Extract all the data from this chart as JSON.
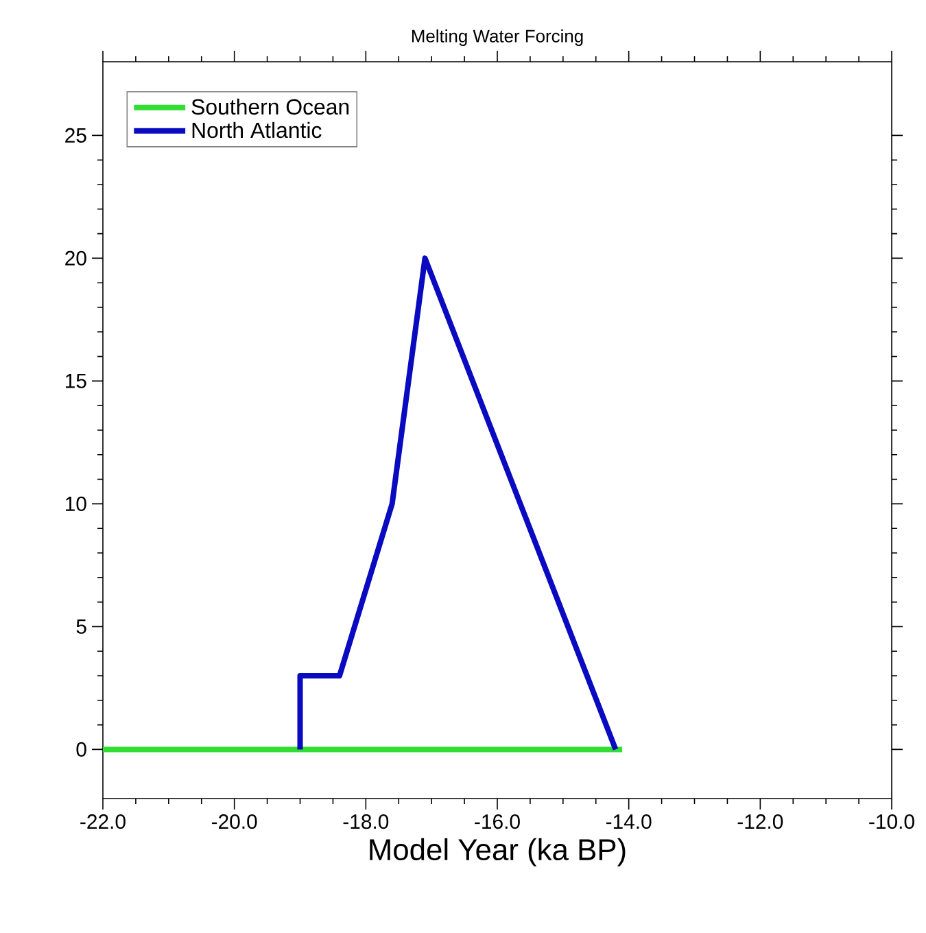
{
  "chart_data": {
    "type": "line",
    "title": "Melting Water Forcing",
    "xlabel": "Model Year (ka BP)",
    "xlim": [
      -22,
      -10
    ],
    "xticks": [
      {
        "value": -22,
        "label": "-22.0"
      },
      {
        "value": -20,
        "label": "-20.0"
      },
      {
        "value": -18,
        "label": "-18.0"
      },
      {
        "value": -16,
        "label": "-16.0"
      },
      {
        "value": -14,
        "label": "-14.0"
      },
      {
        "value": -12,
        "label": "-12.0"
      },
      {
        "value": -10,
        "label": "-10.0"
      }
    ],
    "ylim": [
      -2,
      28
    ],
    "yticks": [
      0,
      5,
      10,
      15,
      20,
      25
    ],
    "legend": "top left",
    "grid": false,
    "marker": "none",
    "line_style": "solid",
    "series": [
      {
        "name": "Southern Ocean",
        "color": "#33dd33",
        "x": [
          -22,
          -14.1
        ],
        "values": [
          0,
          0
        ]
      },
      {
        "name": "North Atlantic",
        "color": "#0a0ac0",
        "x": [
          -19,
          -19,
          -18.4,
          -17.6,
          -17.1,
          -14.2
        ],
        "values": [
          0,
          3,
          3,
          10,
          20,
          0
        ]
      }
    ]
  }
}
